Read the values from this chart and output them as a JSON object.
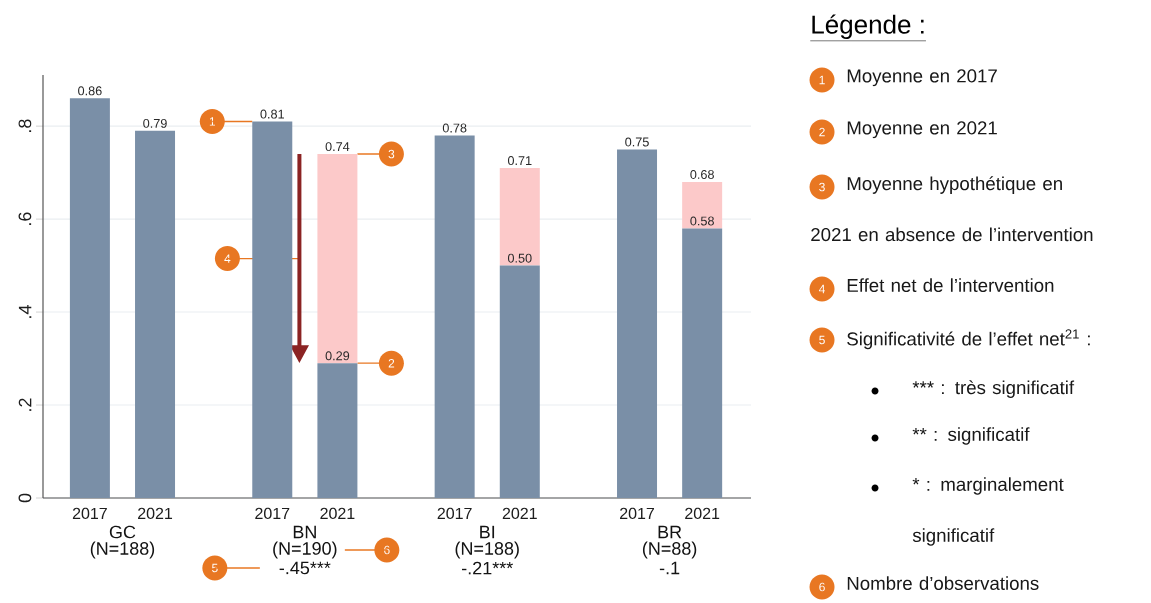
{
  "chart_data": [
    {
      "type": "bar",
      "stacked": true,
      "categories": [
        "2017",
        "2021",
        "2017",
        "2021",
        "2017",
        "2021",
        "2017",
        "2021"
      ],
      "series": [
        {
          "color": "#7a8fa7",
          "values": [
            0.86,
            0.79,
            0.81,
            0.29,
            0.78,
            0.5,
            0.75,
            0.58
          ],
          "value_labels": [
            "0.86",
            "0.79",
            "0.81",
            "0.29",
            "0.78",
            "0.50",
            "0.75",
            "0.58"
          ]
        },
        {
          "color": "#fcc9c9",
          "values": [
            null,
            null,
            null,
            0.45,
            null,
            0.21,
            null,
            0.1
          ]
        }
      ],
      "totals": [
        null,
        null,
        null,
        "0.74",
        null,
        "0.71",
        null,
        "0.68"
      ],
      "ylim": [
        0,
        0.91
      ],
      "yticks": [
        {
          "value": 0,
          "label": "0"
        },
        {
          "value": 0.2,
          "label": ".2"
        },
        {
          "value": 0.4,
          "label": ".4"
        },
        {
          "value": 0.6,
          "label": ".6"
        },
        {
          "value": 0.8,
          "label": ".8"
        }
      ],
      "grid": "y",
      "annotations": [
        "GC",
        "(N=188)",
        "BN",
        "(N=190)",
        "-.45***",
        "BI",
        "(N=188)",
        "-.21***",
        "BR",
        "(N=88)",
        "-.1",
        {
          "text": "1",
          "y": 0.81
        },
        {
          "text": "2",
          "y": 0.29
        },
        {
          "text": "3",
          "y": 0.74
        },
        "4",
        "5",
        "6"
      ]
    },
    {
      "type": "other",
      "title": "Légende :",
      "annotations": [
        "Moyenne en 2017",
        "Moyenne en 2021",
        "Moyenne hypothétique en 2021 en absence de l’intervention",
        "Effet net de l’intervention",
        "Significativité de l’effet net$^{21}$ :",
        "*** : très significatif",
        "** : significatif",
        "* : marginalement significatif",
        "Nombre d’observations"
      ]
    }
  ]
}
